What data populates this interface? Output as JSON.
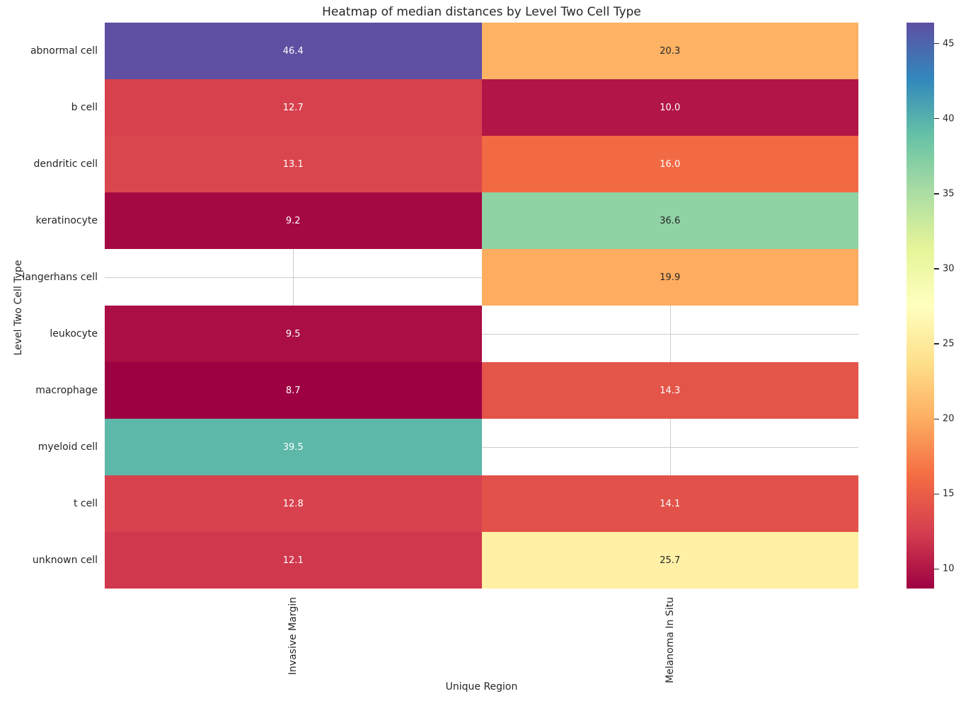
{
  "title": "Heatmap of median distances by Level Two Cell Type",
  "axes": {
    "xlabel": "Unique Region",
    "ylabel": "Level Two Cell Type"
  },
  "chart_data": {
    "type": "heatmap",
    "title": "Heatmap of median distances by Level Two Cell Type",
    "xlabel": "Unique Region",
    "ylabel": "Level Two Cell Type",
    "columns": [
      "Invasive Margin",
      "Melanoma In Situ"
    ],
    "rows": [
      "abnormal cell",
      "b cell",
      "dendritic cell",
      "keratinocyte",
      "langerhans cell",
      "leukocyte",
      "macrophage",
      "myeloid cell",
      "t cell",
      "unknown cell"
    ],
    "values": [
      [
        46.4,
        20.3
      ],
      [
        12.7,
        10.0
      ],
      [
        13.1,
        16.0
      ],
      [
        9.2,
        36.6
      ],
      [
        null,
        19.9
      ],
      [
        9.5,
        null
      ],
      [
        8.7,
        14.3
      ],
      [
        39.5,
        null
      ],
      [
        12.8,
        14.1
      ],
      [
        12.1,
        25.7
      ]
    ],
    "cell_labels": [
      [
        "46.4",
        "20.3"
      ],
      [
        "12.7",
        "10.0"
      ],
      [
        "13.1",
        "16.0"
      ],
      [
        "9.2",
        "36.6"
      ],
      [
        null,
        "19.9"
      ],
      [
        "9.5",
        null
      ],
      [
        "8.7",
        "14.3"
      ],
      [
        "39.5",
        null
      ],
      [
        "12.8",
        "14.1"
      ],
      [
        "12.1",
        "25.7"
      ]
    ],
    "cell_colors": [
      [
        "#5e4fa2",
        "#fdb264"
      ],
      [
        "#d7414e",
        "#b11646"
      ],
      [
        "#da464d",
        "#f26a44"
      ],
      [
        "#a50944",
        "#8fd2a4"
      ],
      [
        null,
        "#fdac60"
      ],
      [
        "#aa0e45",
        null
      ],
      [
        "#9e0142",
        "#e45549"
      ],
      [
        "#5db8a9",
        null
      ],
      [
        "#d8424e",
        "#e2524a"
      ],
      [
        "#d0384e",
        "#fff0a6"
      ]
    ],
    "cell_text_colors": [
      [
        "#ffffff",
        "#262626"
      ],
      [
        "#ffffff",
        "#ffffff"
      ],
      [
        "#ffffff",
        "#ffffff"
      ],
      [
        "#ffffff",
        "#262626"
      ],
      [
        null,
        "#262626"
      ],
      [
        "#ffffff",
        null
      ],
      [
        "#ffffff",
        "#ffffff"
      ],
      [
        "#ffffff",
        null
      ],
      [
        "#ffffff",
        "#ffffff"
      ],
      [
        "#ffffff",
        "#262626"
      ]
    ],
    "colormap": "Spectral",
    "colormap_stops": [
      "#9e0142",
      "#d53e4f",
      "#f46d43",
      "#fdae61",
      "#fee08b",
      "#ffffbf",
      "#e6f598",
      "#abdda4",
      "#66c2a5",
      "#3288bd",
      "#5e4fa2"
    ],
    "vmin": 8.7,
    "vmax": 46.4,
    "colorbar_ticks": [
      10,
      15,
      20,
      25,
      30,
      35,
      40,
      45
    ],
    "grid": true,
    "legend_position": "right-colorbar"
  },
  "style": {
    "text_color": "#262626",
    "annotation_light": "#ffffff",
    "gridline_color": "#cccccc",
    "background": "#ffffff"
  }
}
